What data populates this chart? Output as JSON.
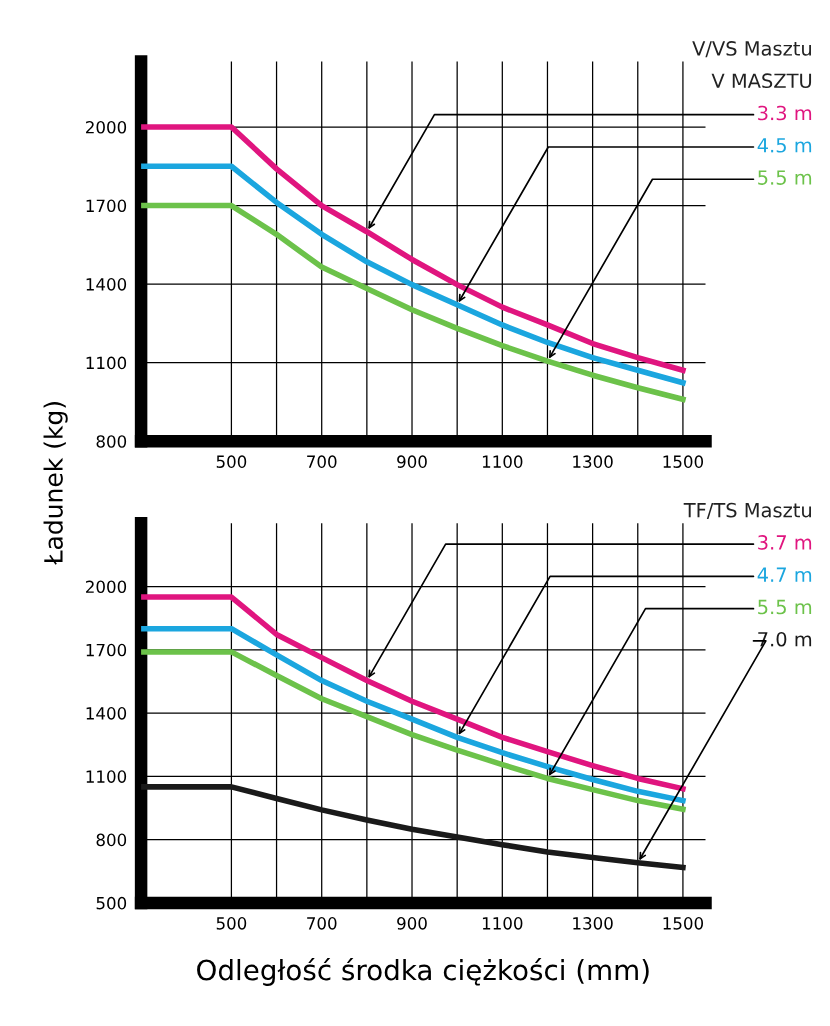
{
  "chart_data": [
    {
      "type": "line",
      "annotations": [
        "V/VS Masztu",
        "V MASZTU"
      ],
      "ylabel": "Ładunek (kg)",
      "x": [
        300,
        400,
        500,
        600,
        700,
        800,
        900,
        1000,
        1100,
        1200,
        1300,
        1400,
        1500
      ],
      "series": [
        {
          "name": "3.3 m",
          "color": "#e0157f",
          "values": [
            2000,
            2000,
            2000,
            1840,
            1700,
            1600,
            1494,
            1398,
            1312,
            1244,
            1173,
            1119,
            1071
          ]
        },
        {
          "name": "4.5 m",
          "color": "#1ba6df",
          "values": [
            1850,
            1850,
            1850,
            1712,
            1590,
            1485,
            1398,
            1321,
            1244,
            1177,
            1119,
            1071,
            1023
          ]
        },
        {
          "name": "5.5 m",
          "color": "#6cc24a",
          "values": [
            1700,
            1700,
            1700,
            1590,
            1465,
            1383,
            1302,
            1231,
            1165,
            1106,
            1052,
            1004,
            960
          ]
        }
      ],
      "xlim": [
        300,
        1550
      ],
      "ylim": [
        800,
        2250
      ],
      "xticks": [
        500,
        {
          "value": 600,
          "label": null
        },
        700,
        {
          "value": 800,
          "label": null
        },
        900,
        {
          "value": 1000,
          "label": null
        },
        1100,
        {
          "value": 1200,
          "label": null
        },
        1300,
        {
          "value": 1400,
          "label": null
        },
        1500
      ],
      "yticks": [
        800,
        1100,
        1400,
        1700,
        2000
      ],
      "grid": true,
      "legend": false,
      "marker": "none",
      "line_style": "solid"
    },
    {
      "type": "line",
      "annotations": [
        "TF/TS Masztu"
      ],
      "xlabel": "Odległość środka ciężkości (mm)",
      "x": [
        300,
        400,
        500,
        600,
        700,
        800,
        900,
        1000,
        1100,
        1200,
        1300,
        1400,
        1500
      ],
      "series": [
        {
          "name": "3.7 m",
          "color": "#e0157f",
          "values": [
            1950,
            1950,
            1950,
            1773,
            1663,
            1554,
            1456,
            1371,
            1285,
            1217,
            1151,
            1090,
            1041
          ]
        },
        {
          "name": "4.7 m",
          "color": "#1ba6df",
          "values": [
            1800,
            1800,
            1800,
            1676,
            1554,
            1456,
            1371,
            1285,
            1212,
            1146,
            1085,
            1029,
            985
          ]
        },
        {
          "name": "5.5 m",
          "color": "#6cc24a",
          "values": [
            1690,
            1690,
            1690,
            1578,
            1468,
            1383,
            1298,
            1224,
            1156,
            1090,
            1037,
            985,
            944
          ]
        },
        {
          "name": "7.0 m",
          "color": "#1a1a1a",
          "values": [
            1050,
            1050,
            1050,
            995,
            941,
            893,
            849,
            812,
            776,
            741,
            715,
            690,
            668
          ]
        }
      ],
      "xlim": [
        300,
        1550
      ],
      "ylim": [
        500,
        2300
      ],
      "xticks": [
        500,
        {
          "value": 600,
          "label": null
        },
        700,
        {
          "value": 800,
          "label": null
        },
        900,
        {
          "value": 1000,
          "label": null
        },
        1100,
        {
          "value": 1200,
          "label": null
        },
        1300,
        {
          "value": 1400,
          "label": null
        },
        1500
      ],
      "yticks": [
        500,
        800,
        1100,
        1400,
        1700,
        2000
      ],
      "grid": true,
      "legend": false,
      "marker": "none",
      "line_style": "solid"
    }
  ]
}
